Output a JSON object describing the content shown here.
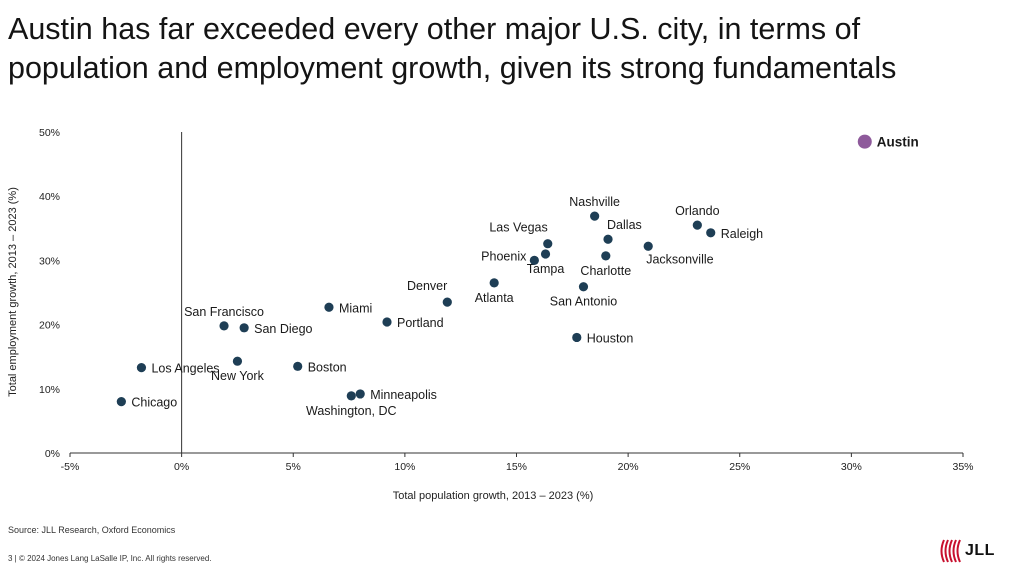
{
  "slide": {
    "title_line1": "Austin has far exceeded every other major U.S. city, in terms of",
    "title_line2": "population and employment growth, given its strong fundamentals",
    "source": "Source: JLL Research, Oxford Economics",
    "footer": "3  |  © 2024 Jones Lang LaSalle IP, Inc. All rights reserved.",
    "logo_text": "JLL"
  },
  "colors": {
    "point": "#1e3e55",
    "highlight": "#8e5a9b",
    "axis": "#333333",
    "logo": "#c8102e"
  },
  "chart_data": {
    "type": "scatter",
    "title": "",
    "xlabel": "Total population growth, 2013 – 2023 (%)",
    "ylabel": "Total employment growth, 2013 – 2023 (%)",
    "xlim": [
      -5,
      35
    ],
    "ylim": [
      0,
      50
    ],
    "xticks": [
      -5,
      0,
      5,
      10,
      15,
      20,
      25,
      30,
      35
    ],
    "xtick_labels": [
      "-5%",
      "0%",
      "5%",
      "10%",
      "15%",
      "20%",
      "25%",
      "30%",
      "35%"
    ],
    "yticks": [
      0,
      10,
      20,
      30,
      40,
      50
    ],
    "ytick_labels": [
      "0%",
      "10%",
      "20%",
      "30%",
      "40%",
      "50%"
    ],
    "points": [
      {
        "name": "Austin",
        "x": 30.6,
        "y": 48.5,
        "highlight": true,
        "label_pos": "right"
      },
      {
        "name": "Orlando",
        "x": 23.1,
        "y": 35.5,
        "label_pos": "above"
      },
      {
        "name": "Raleigh",
        "x": 23.7,
        "y": 34.3,
        "label_pos": "right"
      },
      {
        "name": "Jacksonville",
        "x": 20.9,
        "y": 32.2,
        "label_pos": "below-right"
      },
      {
        "name": "Nashville",
        "x": 18.5,
        "y": 36.9,
        "label_pos": "above"
      },
      {
        "name": "Dallas",
        "x": 19.1,
        "y": 33.3,
        "label_pos": "above-right"
      },
      {
        "name": "Charlotte",
        "x": 19.0,
        "y": 30.7,
        "label_pos": "below"
      },
      {
        "name": "Las Vegas",
        "x": 16.4,
        "y": 32.6,
        "label_pos": "above-left"
      },
      {
        "name": "Tampa",
        "x": 16.3,
        "y": 31.0,
        "label_pos": "below"
      },
      {
        "name": "Phoenix",
        "x": 15.8,
        "y": 30.0,
        "label_pos": "left"
      },
      {
        "name": "San Antonio",
        "x": 18.0,
        "y": 25.9,
        "label_pos": "below"
      },
      {
        "name": "Atlanta",
        "x": 14.0,
        "y": 26.5,
        "label_pos": "below"
      },
      {
        "name": "Houston",
        "x": 17.7,
        "y": 18.0,
        "label_pos": "right"
      },
      {
        "name": "Denver",
        "x": 11.9,
        "y": 23.5,
        "label_pos": "above-left"
      },
      {
        "name": "Portland",
        "x": 9.2,
        "y": 20.4,
        "label_pos": "right"
      },
      {
        "name": "Miami",
        "x": 6.6,
        "y": 22.7,
        "label_pos": "right"
      },
      {
        "name": "San Francisco",
        "x": 1.9,
        "y": 19.8,
        "label_pos": "above"
      },
      {
        "name": "San Diego",
        "x": 2.8,
        "y": 19.5,
        "label_pos": "right"
      },
      {
        "name": "Boston",
        "x": 5.2,
        "y": 13.5,
        "label_pos": "right"
      },
      {
        "name": "New York",
        "x": 2.5,
        "y": 14.3,
        "label_pos": "below"
      },
      {
        "name": "Los Angeles",
        "x": -1.8,
        "y": 13.3,
        "label_pos": "right"
      },
      {
        "name": "Chicago",
        "x": -2.7,
        "y": 8.0,
        "label_pos": "right"
      },
      {
        "name": "Minneapolis",
        "x": 8.0,
        "y": 9.2,
        "label_pos": "right"
      },
      {
        "name": "Washington, DC",
        "x": 7.6,
        "y": 8.9,
        "label_pos": "below"
      }
    ]
  }
}
